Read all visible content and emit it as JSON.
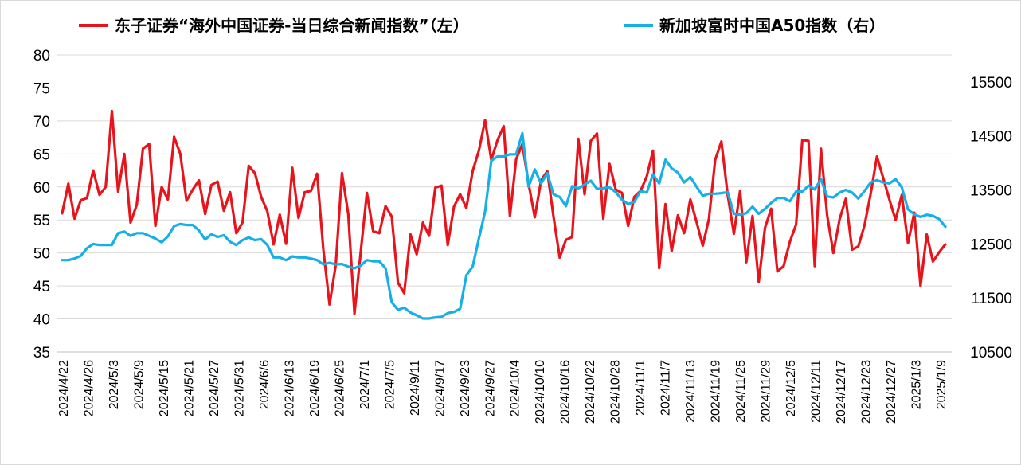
{
  "chart_data": {
    "type": "line",
    "title": "",
    "legend": {
      "placement": "top",
      "entries": [
        {
          "label": "东子证券“海外中国证券-当日综合新闻指数”（左）",
          "color": "#e8141c"
        },
        {
          "label": "新加坡富时中国A50指数（右）",
          "color": "#16b0e6"
        }
      ]
    },
    "grid": true,
    "y_left": {
      "range": [
        35,
        80
      ],
      "ticks": [
        35,
        40,
        45,
        50,
        55,
        60,
        65,
        70,
        75,
        80
      ]
    },
    "y_right": {
      "range": [
        10500,
        16000
      ],
      "ticks": [
        10500,
        11500,
        12500,
        13500,
        14500,
        15500
      ]
    },
    "x_tick_labels": [
      "2024/4/22",
      "2024/4/26",
      "2024/5/3",
      "2024/5/9",
      "2024/5/15",
      "2024/5/21",
      "2024/5/27",
      "2024/5/31",
      "2024/6/6",
      "2024/6/13",
      "2024/6/19",
      "2024/6/25",
      "2024/7/1",
      "2024/7/5",
      "2024/9/11",
      "2024/9/17",
      "2024/9/23",
      "2024/9/27",
      "2024/10/4",
      "2024/10/10",
      "2024/10/16",
      "2024/10/22",
      "2024/10/28",
      "2024/11/1",
      "2024/11/7",
      "2024/11/13",
      "2024/11/19",
      "2024/11/25",
      "2024/11/29",
      "2024/12/5",
      "2024/12/11",
      "2024/12/17",
      "2024/12/23",
      "2024/12/27",
      "2025/1/3",
      "2025/1/9"
    ],
    "series": [
      {
        "name": "东子证券“海外中国证券-当日综合新闻指数”（左）",
        "axis": "left",
        "color": "#e8141c",
        "values": [
          56,
          60.5,
          55.2,
          58,
          58.3,
          62.5,
          58.8,
          60,
          71.5,
          59.3,
          65,
          54.6,
          57.3,
          65.8,
          66.5,
          54.1,
          60,
          58.1,
          67.6,
          65,
          57.9,
          59.6,
          61,
          55.9,
          60.3,
          60.8,
          56.4,
          59.2,
          53,
          54.6,
          63.2,
          62.1,
          58.5,
          56.3,
          51.3,
          55.8,
          51.4,
          62.9,
          55.3,
          59.2,
          59.4,
          62,
          50.5,
          42.2,
          48.2,
          62.1,
          55.9,
          40.8,
          50.1,
          59.1,
          53.3,
          53,
          57.1,
          55.5,
          45.5,
          43.9,
          52.8,
          49.8,
          54.6,
          52.6,
          59.9,
          60.2,
          51.2,
          57,
          58.9,
          56.8,
          62.4,
          65.5,
          70.1,
          64.1,
          67.1,
          69.2,
          55.6,
          64.2,
          66.5,
          60.5,
          55.4,
          61,
          62.4,
          55.5,
          49.3,
          52,
          52.4,
          67.3,
          58.9,
          67,
          68.1,
          55.2,
          63.5,
          59.6,
          59.1,
          54.1,
          58.5,
          59.4,
          61.6,
          65.5,
          47.7,
          57.4,
          50.3,
          55.7,
          53,
          58.1,
          54.7,
          51.1,
          55.2,
          64.1,
          66.9,
          58.8,
          52.9,
          59.4,
          48.6,
          55.6,
          45.6,
          53.8,
          56.7,
          47.2,
          48,
          51.7,
          54.3,
          67.1,
          67,
          48,
          65.8,
          55.7,
          50,
          55.1,
          58.2,
          50.5,
          51,
          54.2,
          59,
          64.6,
          61.4,
          58.1,
          55,
          58.8,
          51.5,
          56.1,
          45,
          52.8,
          48.7,
          50.1,
          51.3
        ]
      },
      {
        "name": "新加坡富时中国A50指数（右）",
        "axis": "right",
        "color": "#16b0e6",
        "values": [
          12200,
          12200,
          12230,
          12280,
          12420,
          12500,
          12480,
          12480,
          12480,
          12700,
          12730,
          12650,
          12700,
          12700,
          12650,
          12600,
          12530,
          12640,
          12830,
          12870,
          12850,
          12850,
          12750,
          12580,
          12680,
          12630,
          12660,
          12540,
          12480,
          12570,
          12620,
          12570,
          12590,
          12480,
          12250,
          12250,
          12200,
          12270,
          12250,
          12250,
          12230,
          12200,
          12120,
          12150,
          12120,
          12130,
          12080,
          12050,
          12100,
          12200,
          12180,
          12180,
          12050,
          11420,
          11280,
          11320,
          11230,
          11180,
          11120,
          11120,
          11140,
          11150,
          11220,
          11240,
          11300,
          11920,
          12080,
          12600,
          13100,
          14040,
          14120,
          14120,
          14160,
          14160,
          14550,
          13560,
          13880,
          13620,
          13810,
          13420,
          13370,
          13200,
          13570,
          13530,
          13600,
          13670,
          13520,
          13530,
          13550,
          13460,
          13320,
          13240,
          13280,
          13480,
          13450,
          13790,
          13620,
          14060,
          13900,
          13820,
          13640,
          13740,
          13560,
          13390,
          13430,
          13430,
          13440,
          13460,
          13060,
          13040,
          13070,
          13190,
          13060,
          13150,
          13260,
          13350,
          13350,
          13290,
          13470,
          13470,
          13580,
          13510,
          13700,
          13380,
          13360,
          13450,
          13500,
          13450,
          13340,
          13480,
          13640,
          13680,
          13640,
          13620,
          13700,
          13550,
          13140,
          13050,
          13000,
          13040,
          13020,
          12960,
          12820
        ]
      }
    ]
  }
}
